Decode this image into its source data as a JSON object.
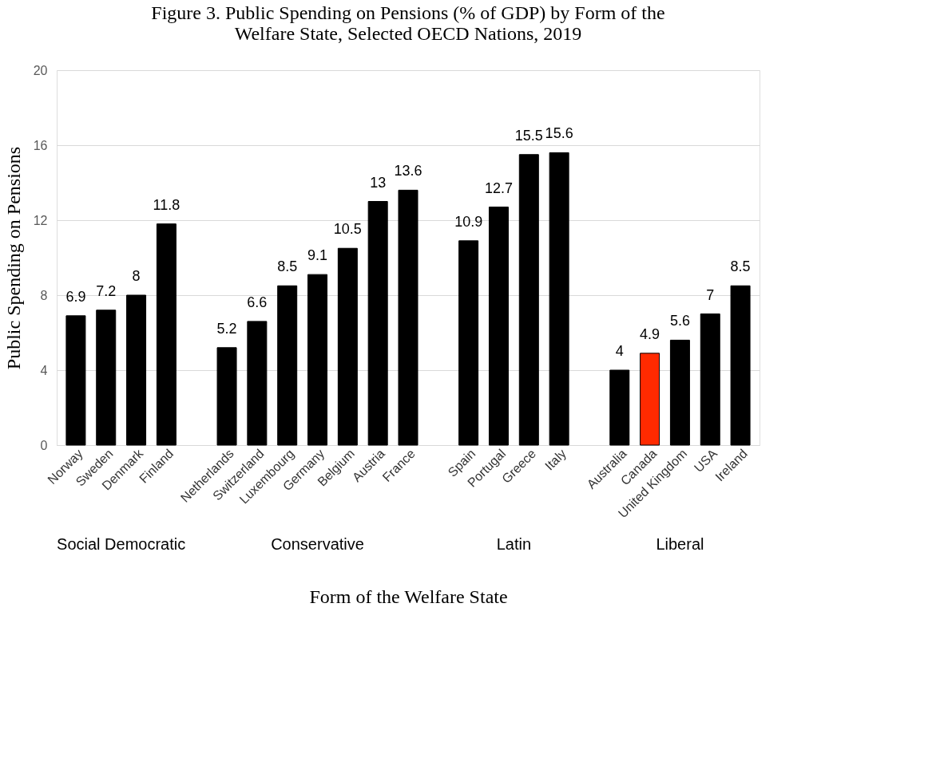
{
  "chart_data": {
    "type": "bar",
    "title": "Figure 3. Public Spending on Pensions (% of GDP) by Form of the Welfare State, Selected OECD Nations, 2019",
    "xlabel": "Form of the Welfare State",
    "ylabel": "Public Spending on Pensions",
    "categories": [
      "Norway",
      "Sweden",
      "Denmark",
      "Finland",
      null,
      "Netherlands",
      "Switzerland",
      "Luxembourg",
      "Germany",
      "Belgium",
      "Austria",
      "France",
      null,
      "Spain",
      "Portugal",
      "Greece",
      "Italy",
      null,
      "Australia",
      "Canada",
      "United Kingdom",
      "USA",
      "Ireland"
    ],
    "values": [
      6.9,
      7.2,
      8,
      11.8,
      null,
      5.2,
      6.6,
      8.5,
      9.1,
      10.5,
      13,
      13.6,
      null,
      10.9,
      12.7,
      15.5,
      15.6,
      null,
      4,
      4.9,
      5.6,
      7,
      8.5
    ],
    "colors": [
      "#000000",
      "#000000",
      "#000000",
      "#000000",
      null,
      "#000000",
      "#000000",
      "#000000",
      "#000000",
      "#000000",
      "#000000",
      "#000000",
      null,
      "#000000",
      "#000000",
      "#000000",
      "#000000",
      null,
      "#000000",
      "#ff2a00",
      "#000000",
      "#000000",
      "#000000"
    ],
    "annotations": [
      "Social Democratic",
      "Conservative",
      "Latin",
      "Liberal"
    ],
    "ylim": [
      0,
      20
    ],
    "yticks": [
      0,
      4,
      8,
      12,
      16,
      20
    ],
    "grid": "y",
    "data_labels": true
  }
}
